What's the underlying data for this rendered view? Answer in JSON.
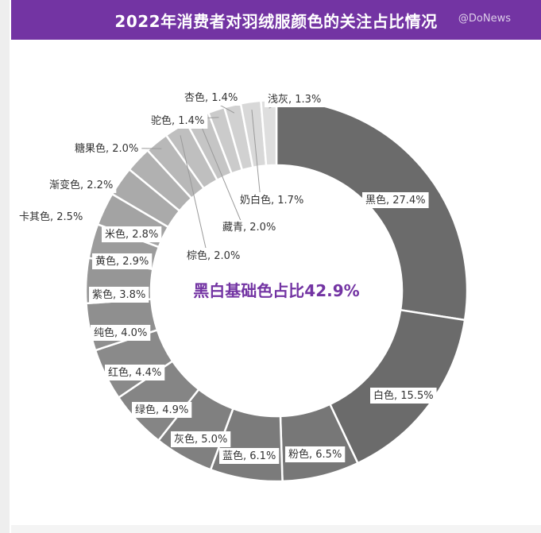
{
  "header": {
    "title": "2022年消费者对羽绒服颜色的关注占比情况",
    "watermark": "@DoNews"
  },
  "chart_data": {
    "type": "pie",
    "donut": true,
    "title": "2022年消费者对羽绒服颜色的关注占比情况",
    "center_label": "黑白基础色占比42.9%",
    "center_label_color": "#7334a3",
    "unit": "%",
    "slices": [
      {
        "name": "黑色",
        "value": 27.4,
        "label": "黑色, 27.4%",
        "color": "#6b6b6b"
      },
      {
        "name": "白色",
        "value": 15.5,
        "label": "白色, 15.5%",
        "color": "#6b6b6b"
      },
      {
        "name": "粉色",
        "value": 6.5,
        "label": "粉色, 6.5%",
        "color": "#777777"
      },
      {
        "name": "蓝色",
        "value": 6.1,
        "label": "蓝色, 6.1%",
        "color": "#7b7b7b"
      },
      {
        "name": "灰色",
        "value": 5.0,
        "label": "灰色, 5.0%",
        "color": "#808080"
      },
      {
        "name": "绿色",
        "value": 4.9,
        "label": "绿色, 4.9%",
        "color": "#858585"
      },
      {
        "name": "红色",
        "value": 4.4,
        "label": "红色, 4.4%",
        "color": "#8a8a8a"
      },
      {
        "name": "纯色",
        "value": 4.0,
        "label": "纯色, 4.0%",
        "color": "#8f8f8f"
      },
      {
        "name": "紫色",
        "value": 3.8,
        "label": "紫色, 3.8%",
        "color": "#969696"
      },
      {
        "name": "黄色",
        "value": 2.9,
        "label": "黄色, 2.9%",
        "color": "#9c9c9c"
      },
      {
        "name": "米色",
        "value": 2.8,
        "label": "米色, 2.8%",
        "color": "#a3a3a3"
      },
      {
        "name": "卡其色",
        "value": 2.5,
        "label": "卡其色, 2.5%",
        "color": "#aaaaaa"
      },
      {
        "name": "渐变色",
        "value": 2.2,
        "label": "渐变色, 2.2%",
        "color": "#b1b1b1"
      },
      {
        "name": "糖果色",
        "value": 2.0,
        "label": "糖果色, 2.0%",
        "color": "#b8b8b8"
      },
      {
        "name": "棕色",
        "value": 2.0,
        "label": "棕色, 2.0%",
        "color": "#bfbfbf"
      },
      {
        "name": "藏青",
        "value": 2.0,
        "label": "藏青, 2.0%",
        "color": "#c5c5c5"
      },
      {
        "name": "驼色",
        "value": 1.4,
        "label": "驼色, 1.4%",
        "color": "#cbcbcb"
      },
      {
        "name": "杏色",
        "value": 1.4,
        "label": "杏色, 1.4%",
        "color": "#d1d1d1"
      },
      {
        "name": "奶白色",
        "value": 1.7,
        "label": "奶白色, 1.7%",
        "color": "#d8d8d8"
      },
      {
        "name": "浅灰",
        "value": 1.3,
        "label": "浅灰, 1.3%",
        "color": "#dedede"
      }
    ]
  }
}
